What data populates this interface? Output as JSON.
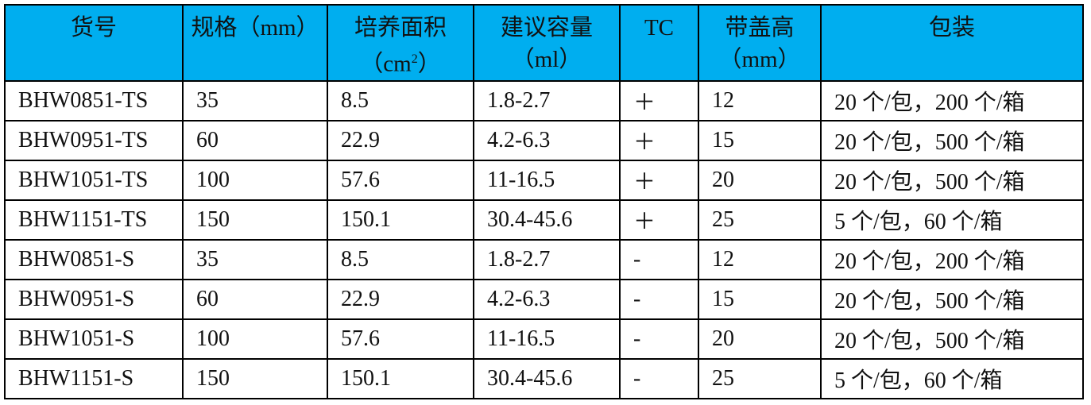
{
  "table": {
    "header_color": "#00aeef",
    "headers": [
      {
        "line1": "货号",
        "line2": ""
      },
      {
        "line1": "规格（mm）",
        "line2": ""
      },
      {
        "line1": "培养面积",
        "line2": "（cm",
        "sup": "2",
        "line2_end": "）"
      },
      {
        "line1": "建议容量",
        "line2": "（ml）"
      },
      {
        "line1": "TC",
        "line2": ""
      },
      {
        "line1": "带盖高",
        "line2": "（mm）"
      },
      {
        "line1": "包装",
        "line2": ""
      }
    ],
    "rows": [
      [
        "BHW0851-TS",
        "35",
        "8.5",
        "1.8-2.7",
        "＋",
        "12",
        "20 个/包，200 个/箱"
      ],
      [
        "BHW0951-TS",
        "60",
        "22.9",
        "4.2-6.3",
        "＋",
        "15",
        "20 个/包，500 个/箱"
      ],
      [
        "BHW1051-TS",
        "100",
        "57.6",
        "11-16.5",
        "＋",
        "20",
        "20 个/包，500 个/箱"
      ],
      [
        "BHW1151-TS",
        "150",
        "150.1",
        "30.4-45.6",
        "＋",
        "25",
        "5 个/包，60 个/箱"
      ],
      [
        "BHW0851-S",
        "35",
        "8.5",
        "1.8-2.7",
        "-",
        "12",
        "20 个/包，200 个/箱"
      ],
      [
        "BHW0951-S",
        "60",
        "22.9",
        "4.2-6.3",
        "-",
        "15",
        "20 个/包，500 个/箱"
      ],
      [
        "BHW1051-S",
        "100",
        "57.6",
        "11-16.5",
        "-",
        "20",
        "20 个/包，500 个/箱"
      ],
      [
        "BHW1151-S",
        "150",
        "150.1",
        "30.4-45.6",
        "-",
        "25",
        "5 个/包，60 个/箱"
      ]
    ]
  }
}
